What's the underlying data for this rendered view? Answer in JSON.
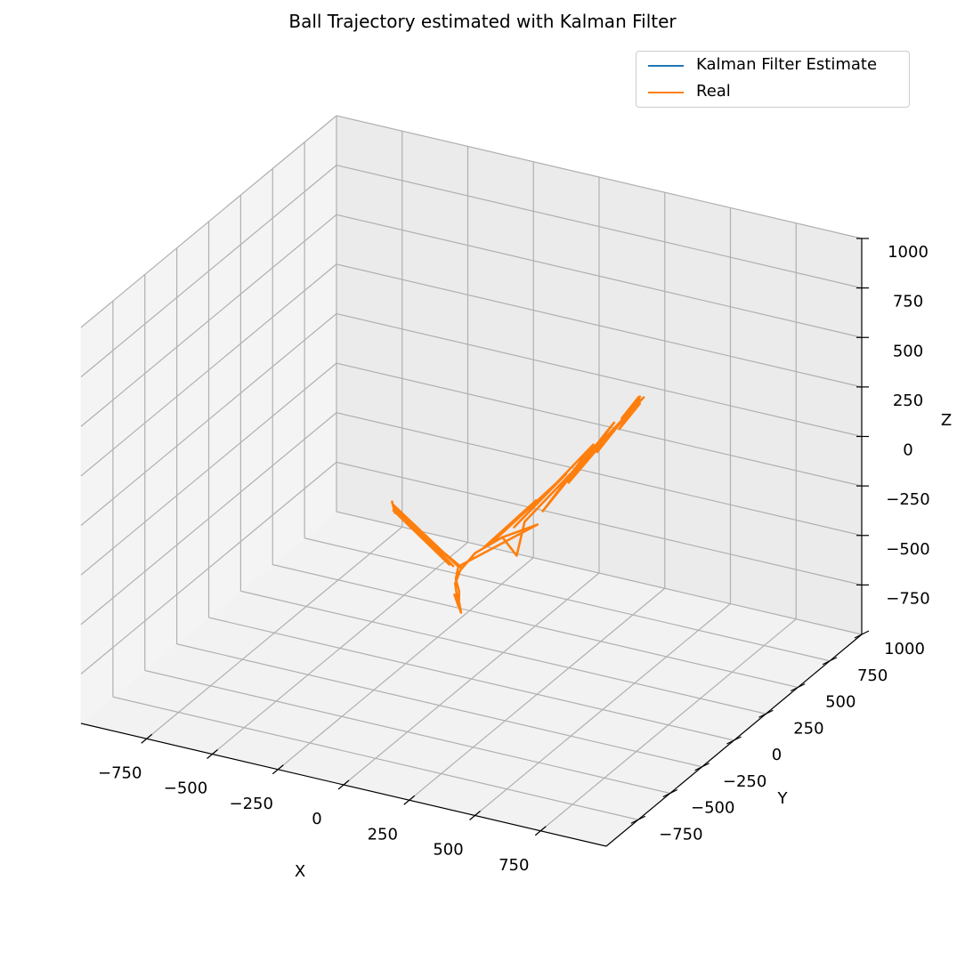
{
  "chart_data": {
    "type": "line",
    "projection": "3d",
    "title": "Ball Trajectory estimated with Kalman Filter",
    "xlabel": "X",
    "ylabel": "Y",
    "zlabel": "Z",
    "xlim": [
      -1000,
      1000
    ],
    "ylim": [
      -1000,
      1000
    ],
    "zlim": [
      -1000,
      1000
    ],
    "xticks": [
      -750,
      -500,
      -250,
      0,
      250,
      500,
      750
    ],
    "yticks": [
      -750,
      -500,
      -250,
      0,
      250,
      500,
      750,
      1000
    ],
    "zticks": [
      -750,
      -500,
      -250,
      0,
      250,
      500,
      750,
      1000
    ],
    "xtick_labels": [
      "−750",
      "−500",
      "−250",
      "0",
      "250",
      "500",
      "750"
    ],
    "ytick_labels": [
      "−750",
      "−500",
      "−250",
      "0",
      "250",
      "500",
      "750",
      "1000"
    ],
    "ztick_labels": [
      "−750",
      "−500",
      "−250",
      "0",
      "250",
      "500",
      "750",
      "1000"
    ],
    "grid": true,
    "legend_position": "top-right",
    "series": [
      {
        "name": "Kalman Filter Estimate",
        "color": "#1f77b4",
        "points": []
      },
      {
        "name": "Real",
        "color": "#ff7f0e",
        "points": [
          [
            -180,
            -240,
            -60
          ],
          [
            -170,
            -250,
            -80
          ],
          [
            -190,
            -230,
            -40
          ],
          [
            -175,
            -245,
            -70
          ],
          [
            -185,
            -235,
            -50
          ],
          [
            -30,
            -40,
            -420
          ],
          [
            -180,
            -240,
            -60
          ],
          [
            -40,
            -60,
            -410
          ],
          [
            -185,
            -235,
            -50
          ],
          [
            -50,
            -70,
            -400
          ],
          [
            -175,
            -250,
            -70
          ],
          [
            -20,
            -30,
            -430
          ],
          [
            -30,
            -40,
            -420
          ],
          [
            -35,
            -50,
            -480
          ],
          [
            -25,
            -45,
            -540
          ],
          [
            -30,
            -35,
            -600
          ],
          [
            -20,
            -40,
            -650
          ],
          [
            -40,
            -50,
            -560
          ],
          [
            -30,
            -40,
            -620
          ],
          [
            -35,
            -55,
            -500
          ],
          [
            -25,
            -35,
            -440
          ],
          [
            0,
            30,
            -380
          ],
          [
            60,
            120,
            -330
          ],
          [
            20,
            60,
            -360
          ],
          [
            120,
            260,
            -200
          ],
          [
            40,
            90,
            -340
          ],
          [
            200,
            330,
            -80
          ],
          [
            80,
            170,
            -300
          ],
          [
            260,
            420,
            40
          ],
          [
            150,
            250,
            -240
          ],
          [
            300,
            500,
            120
          ],
          [
            210,
            330,
            -120
          ],
          [
            330,
            580,
            160
          ],
          [
            270,
            430,
            0
          ],
          [
            340,
            620,
            200
          ],
          [
            310,
            520,
            80
          ],
          [
            330,
            640,
            150
          ],
          [
            345,
            600,
            210
          ],
          [
            300,
            560,
            110
          ],
          [
            340,
            650,
            180
          ],
          [
            120,
            170,
            -260
          ],
          [
            90,
            170,
            -440
          ],
          [
            60,
            120,
            -330
          ],
          [
            140,
            230,
            -300
          ],
          [
            -30,
            -40,
            -420
          ]
        ]
      }
    ]
  }
}
